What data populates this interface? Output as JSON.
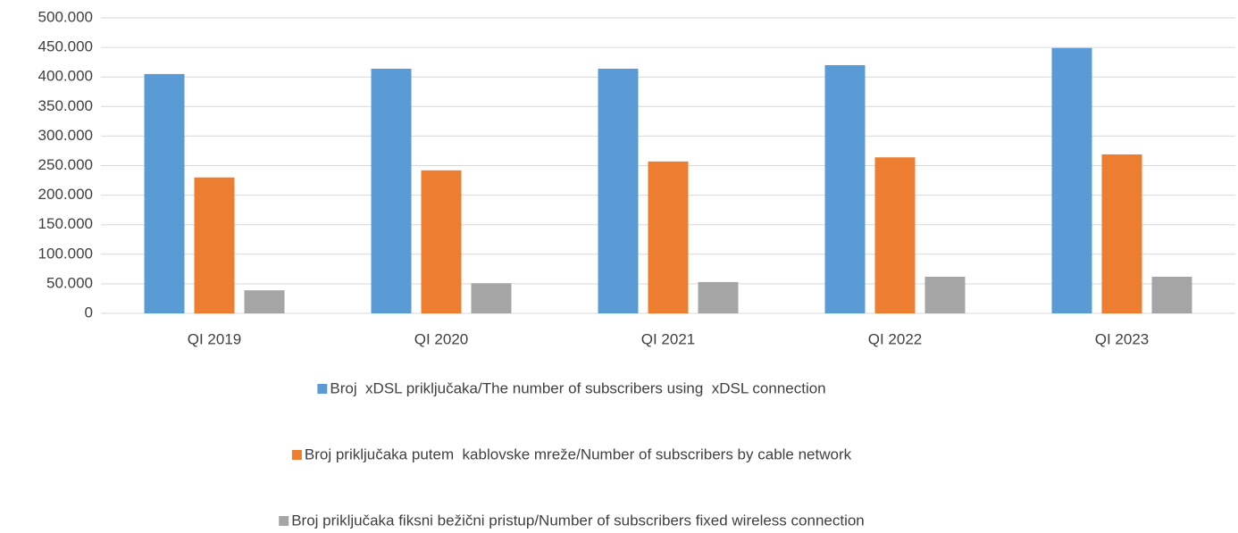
{
  "chart_data": {
    "type": "bar",
    "categories": [
      "QI 2019",
      "QI 2020",
      "QI 2021",
      "QI 2022",
      "QI 2023"
    ],
    "series": [
      {
        "name": "Broj  xDSL priključaka/The number of subscribers using  xDSL connection",
        "color": "#5b9bd5",
        "values": [
          405000,
          414000,
          414000,
          420000,
          449000
        ]
      },
      {
        "name": "Broj priključaka putem  kablovske mreže/Number of subscribers by cable network",
        "color": "#ed7d31",
        "values": [
          230000,
          242000,
          257000,
          264000,
          269000
        ]
      },
      {
        "name": "Broj priključaka fiksni bežični pristup/Number of subscribers fixed wireless connection",
        "color": "#a5a5a5",
        "values": [
          39000,
          51000,
          53000,
          62000,
          62000
        ]
      }
    ],
    "ylim": [
      0,
      500000
    ],
    "yticks": [
      0,
      {
        "value": 50000,
        "label": "50.000"
      },
      {
        "value": 100000,
        "label": "100.000"
      },
      {
        "value": 150000,
        "label": "150.000"
      },
      {
        "value": 200000,
        "label": "200.000"
      },
      {
        "value": 250000,
        "label": "250.000"
      },
      {
        "value": 300000,
        "label": "300.000"
      },
      {
        "value": 350000,
        "label": "350.000"
      },
      {
        "value": 400000,
        "label": "400.000"
      },
      {
        "value": 450000,
        "label": "450.000"
      },
      {
        "value": 500000,
        "label": "500.000"
      }
    ],
    "grid": true,
    "legend": "bottom"
  }
}
